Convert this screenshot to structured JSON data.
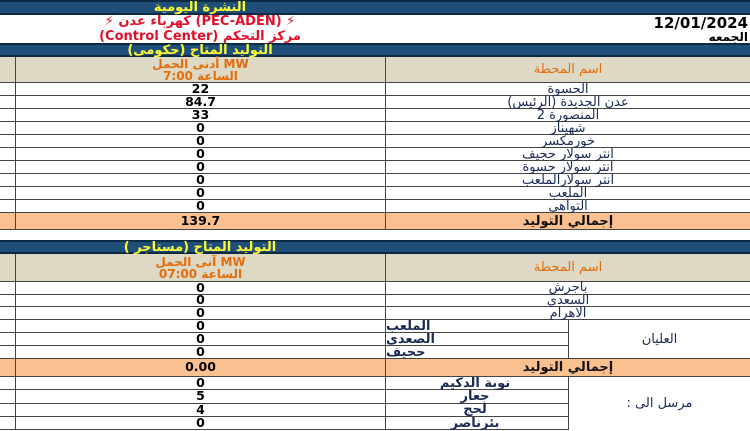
{
  "header": {
    "title": "النشرة اليومية",
    "company": "⚡ (PEC-ADEN) كهرباء عدن ⚡",
    "center": "مركز التحكم (Control Center)",
    "date": "12/01/2024",
    "day": "الجمعه"
  },
  "colors": {
    "bar": "#1f4e79",
    "bar_text": "#ffff33",
    "header_bg": "#ddd9c4",
    "header_text": "#e46c0a",
    "total_bg": "#fac090"
  },
  "gov": {
    "title": "التوليد المتاح (حكومى)",
    "value_header_1": "أدنى الحمل MW",
    "value_header_2": "الساعة 7:00",
    "name_header": "اسم المحطة",
    "rows": [
      {
        "name": "الحسوة",
        "value": "22"
      },
      {
        "name": "عدن الجديدة (الرئيس)",
        "value": "84.7"
      },
      {
        "name": "المنصورة 2",
        "value": "33"
      },
      {
        "name": "شهيناز",
        "value": "0"
      },
      {
        "name": "خورمكسر",
        "value": "0"
      },
      {
        "name": "انتر سولار حجيف",
        "value": "0"
      },
      {
        "name": "انتر سولار حسوة",
        "value": "0"
      },
      {
        "name": "انتر سولارالملعب",
        "value": "0"
      },
      {
        "name": "الملعب",
        "value": "0"
      },
      {
        "name": "التواهي",
        "value": "0"
      }
    ],
    "total_label": "إجمالي التوليد",
    "total": "139.7"
  },
  "rent": {
    "title": "التوليد المتاح (مستاجر )",
    "value_header_1": "آنى الحمل MW",
    "value_header_2": "الساعة 07:00",
    "name_header": "اسم المحطة",
    "rows": [
      {
        "name": "باجرش",
        "value": "0"
      },
      {
        "name": "السعدي",
        "value": "0"
      },
      {
        "name": "الاهرام",
        "value": "0"
      }
    ],
    "group_label": "العليان",
    "group_rows": [
      {
        "name": "الملعب",
        "value": "0"
      },
      {
        "name": "الصعدى",
        "value": "0"
      },
      {
        "name": "حجيف",
        "value": "0"
      }
    ],
    "total_label": "إجمالي التوليد",
    "total": "0.00",
    "sent_label": "مرسل الى :",
    "sent_rows": [
      {
        "name": "نوبة الدكيم",
        "value": "0"
      },
      {
        "name": "جعار",
        "value": "5"
      },
      {
        "name": "لحج",
        "value": "4"
      },
      {
        "name": "بئرناصر",
        "value": "0"
      }
    ]
  }
}
